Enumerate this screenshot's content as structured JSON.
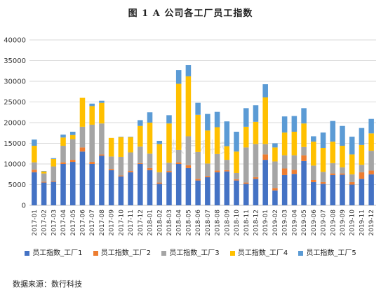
{
  "title": "图 1     A 公司各工厂员工指数",
  "source": "数据来源：数行科技",
  "watermark": "数行科技",
  "colors": {
    "s1": "#4472C4",
    "s2": "#ED7D31",
    "s3": "#A5A5A5",
    "s4": "#FFC000",
    "s5": "#5B9BD5",
    "grid": "#D9D9D9",
    "axis": "#BFBFBF"
  },
  "chart_data": {
    "type": "bar",
    "stacked": true,
    "categories": [
      "2017-01",
      "2017-02",
      "2017-03",
      "2017-04",
      "2017-05",
      "2017-06",
      "2017-07",
      "2017-08",
      "2017-09",
      "2017-10",
      "2017-11",
      "2017-12",
      "2018-01",
      "2018-02",
      "2018-03",
      "2018-04",
      "2018-05",
      "2018-06",
      "2018-07",
      "2018-08",
      "2018-09",
      "2018-10",
      "2018-11",
      "2018-12",
      "2019-01",
      "2019-02",
      "2019-03",
      "2019-04",
      "2019-05",
      "2019-06",
      "2019-07",
      "2019-08",
      "2019-09",
      "2019-10",
      "2019-11",
      "2019-12"
    ],
    "series": [
      {
        "name": "员工指数_工厂1",
        "color": "#4472C4",
        "values": [
          8000,
          5500,
          5700,
          10000,
          10500,
          13000,
          10000,
          12000,
          8500,
          7000,
          8000,
          10000,
          8500,
          5200,
          8000,
          10000,
          9000,
          6000,
          6800,
          8000,
          8200,
          6000,
          5200,
          6400,
          11000,
          3600,
          7300,
          7600,
          10700,
          5600,
          5200,
          7300,
          7400,
          5000,
          6400,
          7500
        ]
      },
      {
        "name": "员工指数_工厂2",
        "color": "#ED7D31",
        "values": [
          600,
          200,
          200,
          400,
          500,
          1000,
          500,
          300,
          300,
          200,
          300,
          200,
          500,
          300,
          300,
          400,
          700,
          400,
          300,
          400,
          300,
          300,
          300,
          400,
          1300,
          600,
          1600,
          1000,
          1400,
          500,
          400,
          400,
          300,
          600,
          1600,
          900
        ]
      },
      {
        "name": "员工指数_工厂3",
        "color": "#A5A5A5",
        "values": [
          1800,
          2000,
          3500,
          4000,
          5000,
          5000,
          9000,
          7500,
          3000,
          4500,
          4500,
          4000,
          3500,
          2500,
          2000,
          3000,
          7000,
          6500,
          3000,
          4000,
          2500,
          1500,
          8500,
          8000,
          2500,
          6400,
          3200,
          3500,
          2000,
          3500,
          2500,
          2500,
          1500,
          1900,
          1800,
          4800
        ]
      },
      {
        "name": "员工指数_工厂4",
        "color": "#FFC000",
        "values": [
          4000,
          500,
          1800,
          2000,
          1000,
          7000,
          4500,
          5000,
          4500,
          4800,
          3700,
          5000,
          7500,
          6800,
          9500,
          16000,
          14500,
          9000,
          8000,
          6500,
          3300,
          5200,
          5000,
          5400,
          11300,
          3400,
          5500,
          5700,
          5700,
          5800,
          5800,
          5200,
          5200,
          4800,
          4800,
          4200
        ]
      },
      {
        "name": "员工指数_工厂5",
        "color": "#5B9BD5",
        "values": [
          1500,
          100,
          200,
          700,
          800,
          0,
          600,
          500,
          0,
          100,
          100,
          1400,
          2500,
          800,
          2000,
          3300,
          2700,
          2900,
          4000,
          3700,
          6000,
          4800,
          4500,
          4000,
          3200,
          1000,
          3900,
          3800,
          3700,
          1300,
          3700,
          5000,
          4800,
          4300,
          4100,
          3500
        ]
      }
    ],
    "ylim": [
      0,
      40000
    ],
    "yticks": [
      0,
      5000,
      10000,
      15000,
      20000,
      25000,
      30000,
      35000,
      40000
    ],
    "grid": true,
    "legend_position": "bottom",
    "xlabel": "",
    "ylabel": ""
  }
}
